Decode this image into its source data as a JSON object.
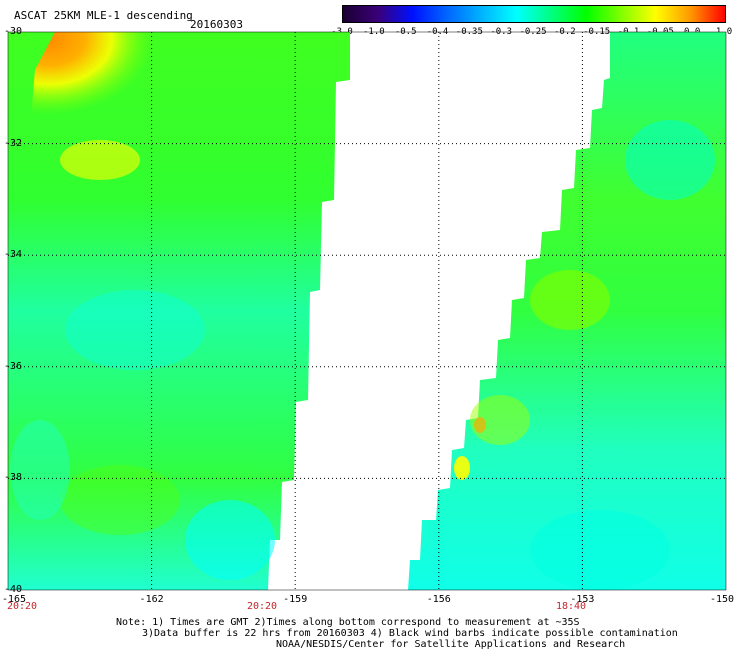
{
  "header": {
    "title": "ASCAT 25KM MLE-1 descending",
    "date": "20160303"
  },
  "colorbar": {
    "stops": [
      "#1a0030",
      "#3a0078",
      "#0010ff",
      "#0066ff",
      "#00b4ff",
      "#00ffff",
      "#00ff80",
      "#00ff00",
      "#80ff00",
      "#ffff00",
      "#ff9900",
      "#ff0000"
    ],
    "labels": [
      "-3.0",
      "-1.0",
      "-0.5",
      "-0.4",
      "-0.35",
      "-0.3",
      "-0.25",
      "-0.2",
      "-0.15",
      "-0.1",
      "-0.05",
      "0.0",
      "1.0"
    ]
  },
  "map": {
    "lat_labels": [
      "-30",
      "-32",
      "-34",
      "-36",
      "-38",
      "-40"
    ],
    "lon_labels": [
      "-165",
      "-162",
      "-159",
      "-156",
      "-153",
      "-150"
    ],
    "lat_range": [
      -40,
      -30
    ],
    "lon_range": [
      -165,
      -150
    ],
    "time_labels": [
      "20:20",
      "20:20",
      "18:40"
    ],
    "grid": "dotted"
  },
  "notes": {
    "line1": "Note: 1) Times are GMT 2)Times along bottom correspond to measurement at ~35S",
    "line2": "3)Data buffer is 22 hrs from 20160303 4) Black wind barbs indicate possible contamination",
    "line3": "NOAA/NESDIS/Center for Satellite Applications and Research"
  }
}
